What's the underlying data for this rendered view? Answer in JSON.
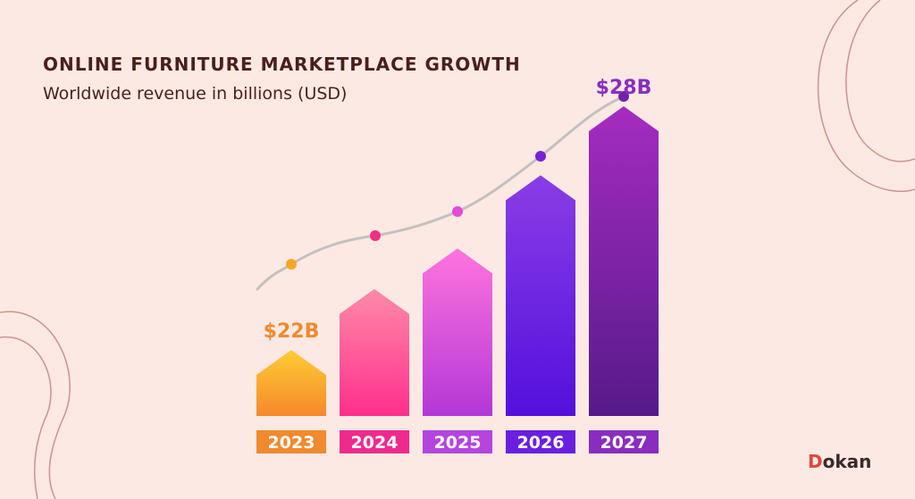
{
  "header": {
    "title": "ONLINE FURNITURE MARKETPLACE GROWTH",
    "subtitle": "Worldwide revenue in billions (USD)"
  },
  "brand": {
    "initial": "D",
    "rest": "okan",
    "color": "#e0463a"
  },
  "chart_data": {
    "type": "bar",
    "title": "ONLINE FURNITURE MARKETPLACE GROWTH",
    "subtitle": "Worldwide revenue in billions (USD)",
    "categories": [
      "2023",
      "2024",
      "2025",
      "2026",
      "2027"
    ],
    "values": [
      22,
      23.5,
      24.5,
      26.3,
      28
    ],
    "value_labels": [
      "$22B",
      "",
      "",
      "",
      "$28B"
    ],
    "unit": "USD billions",
    "trend_line": true,
    "legend": "none",
    "grid": false,
    "colors": [
      [
        "#ffcc33",
        "#f5892c"
      ],
      [
        "#ff8aa8",
        "#ff2f8c"
      ],
      [
        "#ff74dc",
        "#b237d8"
      ],
      [
        "#8a3de6",
        "#5410dc"
      ],
      [
        "#a52cc0",
        "#561a8a"
      ]
    ],
    "label_colors": [
      "#f08a2e",
      "#ee2b8c",
      "#b545dc",
      "#6a1fe0",
      "#8a2dbf"
    ],
    "dot_colors": [
      "#f5a623",
      "#f02f86",
      "#e34ad8",
      "#7d1fd4",
      "#7222a8"
    ]
  }
}
